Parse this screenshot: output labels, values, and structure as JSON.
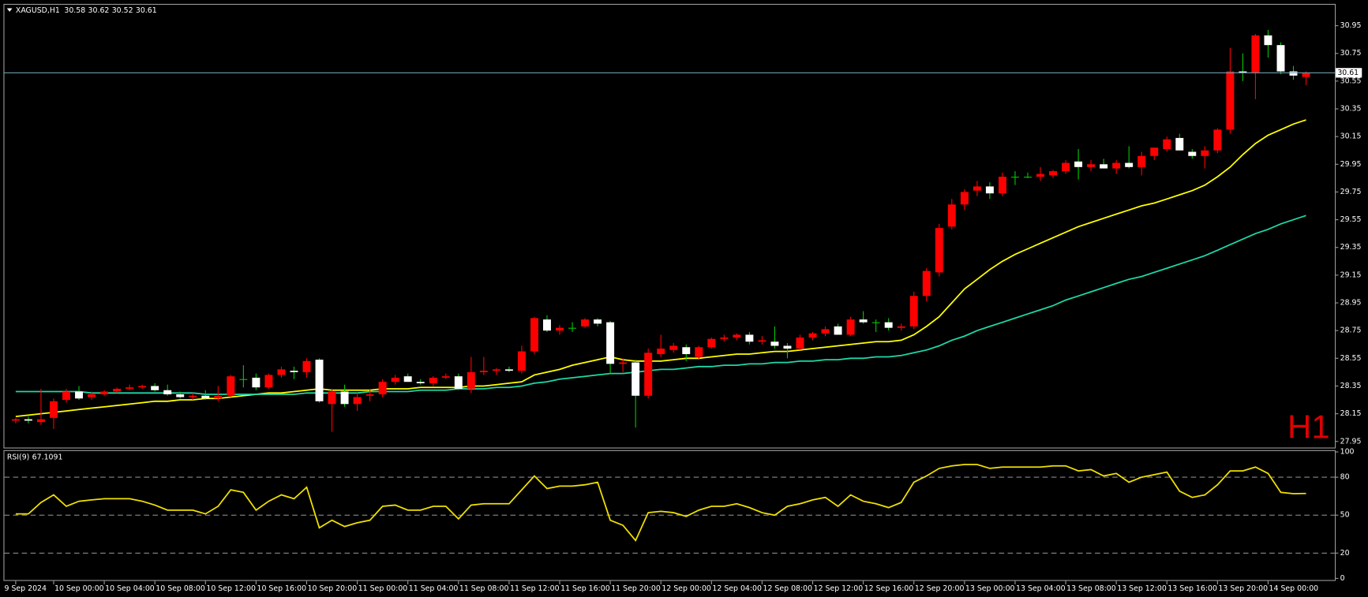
{
  "chart_data": [
    {
      "type": "candlestick",
      "title": "XAGUSD,H1",
      "watermark": "H1",
      "categories": [
        "9 Sep 2024",
        null,
        null,
        "10 Sep 00:00",
        null,
        null,
        null,
        "10 Sep 04:00",
        null,
        null,
        null,
        "10 Sep 08:00",
        null,
        null,
        null,
        "10 Sep 12:00",
        null,
        null,
        null,
        "10 Sep 16:00",
        null,
        null,
        null,
        "10 Sep 20:00",
        null,
        null,
        null,
        "11 Sep 00:00",
        null,
        null,
        null,
        "11 Sep 04:00",
        null,
        null,
        null,
        "11 Sep 08:00",
        null,
        null,
        null,
        "11 Sep 12:00",
        null,
        null,
        null,
        "11 Sep 16:00",
        null,
        null,
        null,
        "11 Sep 20:00",
        null,
        null,
        null,
        "12 Sep 00:00",
        null,
        null,
        null,
        "12 Sep 04:00",
        null,
        null,
        null,
        "12 Sep 08:00",
        null,
        null,
        null,
        "12 Sep 12:00",
        null,
        null,
        null,
        "12 Sep 16:00",
        null,
        null,
        null,
        "12 Sep 20:00",
        null,
        null,
        null,
        "13 Sep 00:00",
        null,
        null,
        null,
        "13 Sep 04:00",
        null,
        null,
        null,
        "13 Sep 08:00",
        null,
        null,
        null,
        "13 Sep 12:00",
        null,
        null,
        null,
        "13 Sep 16:00",
        null,
        null,
        null,
        "13 Sep 20:00",
        null,
        null,
        null,
        "14 Sep 00:00",
        null,
        null,
        null
      ],
      "open": [
        28.1,
        28.11,
        28.09,
        28.12,
        28.25,
        28.31,
        28.27,
        28.29,
        28.31,
        28.33,
        28.34,
        28.35,
        28.32,
        28.29,
        28.27,
        28.28,
        28.26,
        28.28,
        28.4,
        28.41,
        28.34,
        28.43,
        28.46,
        28.45,
        28.54,
        28.22,
        28.31,
        28.22,
        28.28,
        28.29,
        28.38,
        28.42,
        28.38,
        28.37,
        28.41,
        28.42,
        28.33,
        28.45,
        28.46,
        28.47,
        28.46,
        28.6,
        28.83,
        28.75,
        28.77,
        28.78,
        28.83,
        28.81,
        28.51,
        28.52,
        28.28,
        28.58,
        28.61,
        28.63,
        28.56,
        28.63,
        28.69,
        28.7,
        28.72,
        28.67,
        28.67,
        28.64,
        28.62,
        28.7,
        28.73,
        28.78,
        28.72,
        28.83,
        28.81,
        28.81,
        28.77,
        28.78,
        29.0,
        29.17,
        29.5,
        29.66,
        29.76,
        29.79,
        29.74,
        29.86,
        29.86,
        29.86,
        29.87,
        29.9,
        29.97,
        29.93,
        29.95,
        29.92,
        29.96,
        29.93,
        30.01,
        30.06,
        30.14,
        30.04,
        30.01,
        30.05,
        30.2,
        30.62,
        30.61,
        30.88,
        30.81,
        30.62,
        30.58
      ],
      "high": [
        28.12,
        28.13,
        28.33,
        28.26,
        28.33,
        28.35,
        28.31,
        28.32,
        28.34,
        28.36,
        28.36,
        28.37,
        28.36,
        28.31,
        28.3,
        28.32,
        28.35,
        28.43,
        28.5,
        28.44,
        28.44,
        28.49,
        28.49,
        28.55,
        28.55,
        28.33,
        28.36,
        28.3,
        28.33,
        28.4,
        28.43,
        28.44,
        28.4,
        28.42,
        28.44,
        28.44,
        28.56,
        28.56,
        28.48,
        28.49,
        28.64,
        28.85,
        28.86,
        28.79,
        28.81,
        28.84,
        28.84,
        28.82,
        28.55,
        28.54,
        28.62,
        28.72,
        28.66,
        28.65,
        28.64,
        28.7,
        28.72,
        28.73,
        28.74,
        28.71,
        28.78,
        28.66,
        28.72,
        28.74,
        28.78,
        28.8,
        28.85,
        28.89,
        28.83,
        28.84,
        28.8,
        29.03,
        29.2,
        29.52,
        29.7,
        29.77,
        29.83,
        29.82,
        29.89,
        29.9,
        29.89,
        29.93,
        29.91,
        29.98,
        30.06,
        29.98,
        29.99,
        29.98,
        30.08,
        30.04,
        30.07,
        30.15,
        30.17,
        30.06,
        30.08,
        30.21,
        30.79,
        30.75,
        30.89,
        30.92,
        30.83,
        30.66,
        30.62
      ],
      "low": [
        28.08,
        28.08,
        28.07,
        28.04,
        28.23,
        28.25,
        28.25,
        28.28,
        28.3,
        28.32,
        28.33,
        28.31,
        28.28,
        28.26,
        28.25,
        28.25,
        28.24,
        28.27,
        28.34,
        28.32,
        28.33,
        28.41,
        28.4,
        28.41,
        28.23,
        28.02,
        28.2,
        28.17,
        28.24,
        28.27,
        28.36,
        28.38,
        28.36,
        28.35,
        28.4,
        28.32,
        28.3,
        28.43,
        28.43,
        28.45,
        28.44,
        28.58,
        28.74,
        28.72,
        28.74,
        28.77,
        28.78,
        28.44,
        28.45,
        28.05,
        28.26,
        28.56,
        28.59,
        28.53,
        28.54,
        28.62,
        28.67,
        28.68,
        28.65,
        28.65,
        28.62,
        28.55,
        28.61,
        28.68,
        28.71,
        28.72,
        28.71,
        28.8,
        28.74,
        28.75,
        28.75,
        28.76,
        28.96,
        29.14,
        29.48,
        29.62,
        29.72,
        29.7,
        29.72,
        29.8,
        29.85,
        29.83,
        29.85,
        29.88,
        29.84,
        29.9,
        29.92,
        29.88,
        29.92,
        29.87,
        29.98,
        30.04,
        30.05,
        29.99,
        29.92,
        30.03,
        30.17,
        30.55,
        30.42,
        30.72,
        30.6,
        30.56,
        30.52
      ],
      "close": [
        28.11,
        28.1,
        28.11,
        28.24,
        28.31,
        28.26,
        28.29,
        28.31,
        28.33,
        28.34,
        28.35,
        28.32,
        28.29,
        28.27,
        28.28,
        28.26,
        28.28,
        28.42,
        28.4,
        28.34,
        28.43,
        28.47,
        28.45,
        28.53,
        28.24,
        28.31,
        28.22,
        28.27,
        28.29,
        28.38,
        28.41,
        28.38,
        28.37,
        28.41,
        28.42,
        28.33,
        28.45,
        28.46,
        28.47,
        28.46,
        28.6,
        28.84,
        28.75,
        28.77,
        28.77,
        28.83,
        28.8,
        28.51,
        28.52,
        28.28,
        28.59,
        28.62,
        28.64,
        28.58,
        28.63,
        28.69,
        28.7,
        28.72,
        28.67,
        28.68,
        28.64,
        28.62,
        28.7,
        28.73,
        28.76,
        28.72,
        28.83,
        28.81,
        28.81,
        28.77,
        28.78,
        29.0,
        29.18,
        29.49,
        29.66,
        29.75,
        29.79,
        29.74,
        29.86,
        29.86,
        29.86,
        29.88,
        29.9,
        29.96,
        29.93,
        29.95,
        29.92,
        29.96,
        29.93,
        30.01,
        30.07,
        30.13,
        30.05,
        30.01,
        30.05,
        30.2,
        30.62,
        30.61,
        30.88,
        30.81,
        30.62,
        30.59,
        30.61
      ],
      "up_color": "#ff0000",
      "down_color": "#ffffff",
      "wick_color": "#00c800",
      "lines": [
        {
          "color": "#ffff00",
          "values": [
            28.13,
            28.14,
            28.15,
            28.16,
            28.17,
            28.18,
            28.19,
            28.2,
            28.21,
            28.22,
            28.23,
            28.24,
            28.24,
            28.25,
            28.25,
            28.26,
            28.26,
            28.27,
            28.28,
            28.29,
            28.3,
            28.3,
            28.31,
            28.32,
            28.33,
            28.32,
            28.32,
            28.32,
            28.32,
            28.33,
            28.33,
            28.33,
            28.34,
            28.34,
            28.34,
            28.34,
            28.35,
            28.35,
            28.36,
            28.37,
            28.38,
            28.43,
            28.45,
            28.47,
            28.5,
            28.52,
            28.54,
            28.56,
            28.54,
            28.53,
            28.53,
            28.53,
            28.54,
            28.55,
            28.55,
            28.56,
            28.57,
            28.58,
            28.58,
            28.59,
            28.6,
            28.6,
            28.61,
            28.62,
            28.63,
            28.64,
            28.65,
            28.66,
            28.67,
            28.67,
            28.68,
            28.72,
            28.78,
            28.85,
            28.95,
            29.05,
            29.12,
            29.19,
            29.25,
            29.3,
            29.34,
            29.38,
            29.42,
            29.46,
            29.5,
            29.53,
            29.56,
            29.59,
            29.62,
            29.65,
            29.67,
            29.7,
            29.73,
            29.76,
            29.8,
            29.86,
            29.93,
            30.02,
            30.1,
            30.16,
            30.2,
            30.24,
            30.27
          ]
        },
        {
          "color": "#1ed8a8",
          "values": [
            28.31,
            28.31,
            28.31,
            28.31,
            28.31,
            28.31,
            28.3,
            28.3,
            28.3,
            28.3,
            28.3,
            28.3,
            28.3,
            28.3,
            28.3,
            28.29,
            28.29,
            28.29,
            28.29,
            28.29,
            28.29,
            28.29,
            28.29,
            28.3,
            28.3,
            28.3,
            28.3,
            28.3,
            28.31,
            28.31,
            28.31,
            28.31,
            28.32,
            28.32,
            28.32,
            28.33,
            28.33,
            28.33,
            28.34,
            28.34,
            28.35,
            28.37,
            28.38,
            28.4,
            28.41,
            28.42,
            28.43,
            28.44,
            28.44,
            28.45,
            28.46,
            28.47,
            28.47,
            28.48,
            28.49,
            28.49,
            28.5,
            28.5,
            28.51,
            28.51,
            28.52,
            28.52,
            28.53,
            28.53,
            28.54,
            28.54,
            28.55,
            28.55,
            28.56,
            28.56,
            28.57,
            28.59,
            28.61,
            28.64,
            28.68,
            28.71,
            28.75,
            28.78,
            28.81,
            28.84,
            28.87,
            28.9,
            28.93,
            28.97,
            29.0,
            29.03,
            29.06,
            29.09,
            29.12,
            29.14,
            29.17,
            29.2,
            29.23,
            29.26,
            29.29,
            29.33,
            29.37,
            29.41,
            29.45,
            29.48,
            29.52,
            29.55,
            29.58
          ]
        }
      ],
      "price_line_color": "#6f9fb0",
      "ylim": [
        27.906,
        31.101
      ],
      "yticks": [
        30.95,
        30.75,
        30.55,
        30.35,
        30.15,
        29.95,
        29.75,
        29.55,
        29.35,
        29.15,
        28.95,
        28.75,
        28.55,
        28.35,
        28.15,
        27.95
      ],
      "grid": false
    },
    {
      "type": "line",
      "title": "RSI(9)",
      "color": "#f0e000",
      "values": [
        51,
        51,
        60,
        66,
        57,
        61,
        62,
        63,
        63,
        63,
        61,
        58,
        54,
        54,
        54,
        51,
        57,
        70,
        68,
        54,
        61,
        66,
        63,
        72,
        40,
        46,
        41,
        44,
        46,
        57,
        58,
        54,
        54,
        57,
        57,
        47,
        58,
        59,
        59,
        59,
        70,
        81,
        71,
        73,
        73,
        74,
        76,
        46,
        42,
        30,
        52,
        53,
        52,
        49,
        54,
        57,
        57,
        59,
        56,
        52,
        50,
        57,
        59,
        62,
        64,
        57,
        66,
        61,
        59,
        56,
        60,
        76,
        81,
        87,
        89,
        90,
        90,
        87,
        88,
        88,
        88,
        88,
        89,
        89,
        85,
        86,
        81,
        83,
        76,
        80,
        82,
        84,
        69,
        64,
        66,
        74,
        85,
        85,
        88,
        83,
        68,
        67,
        67.1091
      ],
      "levels": [
        20,
        50,
        80
      ],
      "ylim": [
        -2,
        100.7
      ],
      "yticks": [
        100,
        80,
        50,
        20,
        0
      ],
      "grid": false
    }
  ]
}
